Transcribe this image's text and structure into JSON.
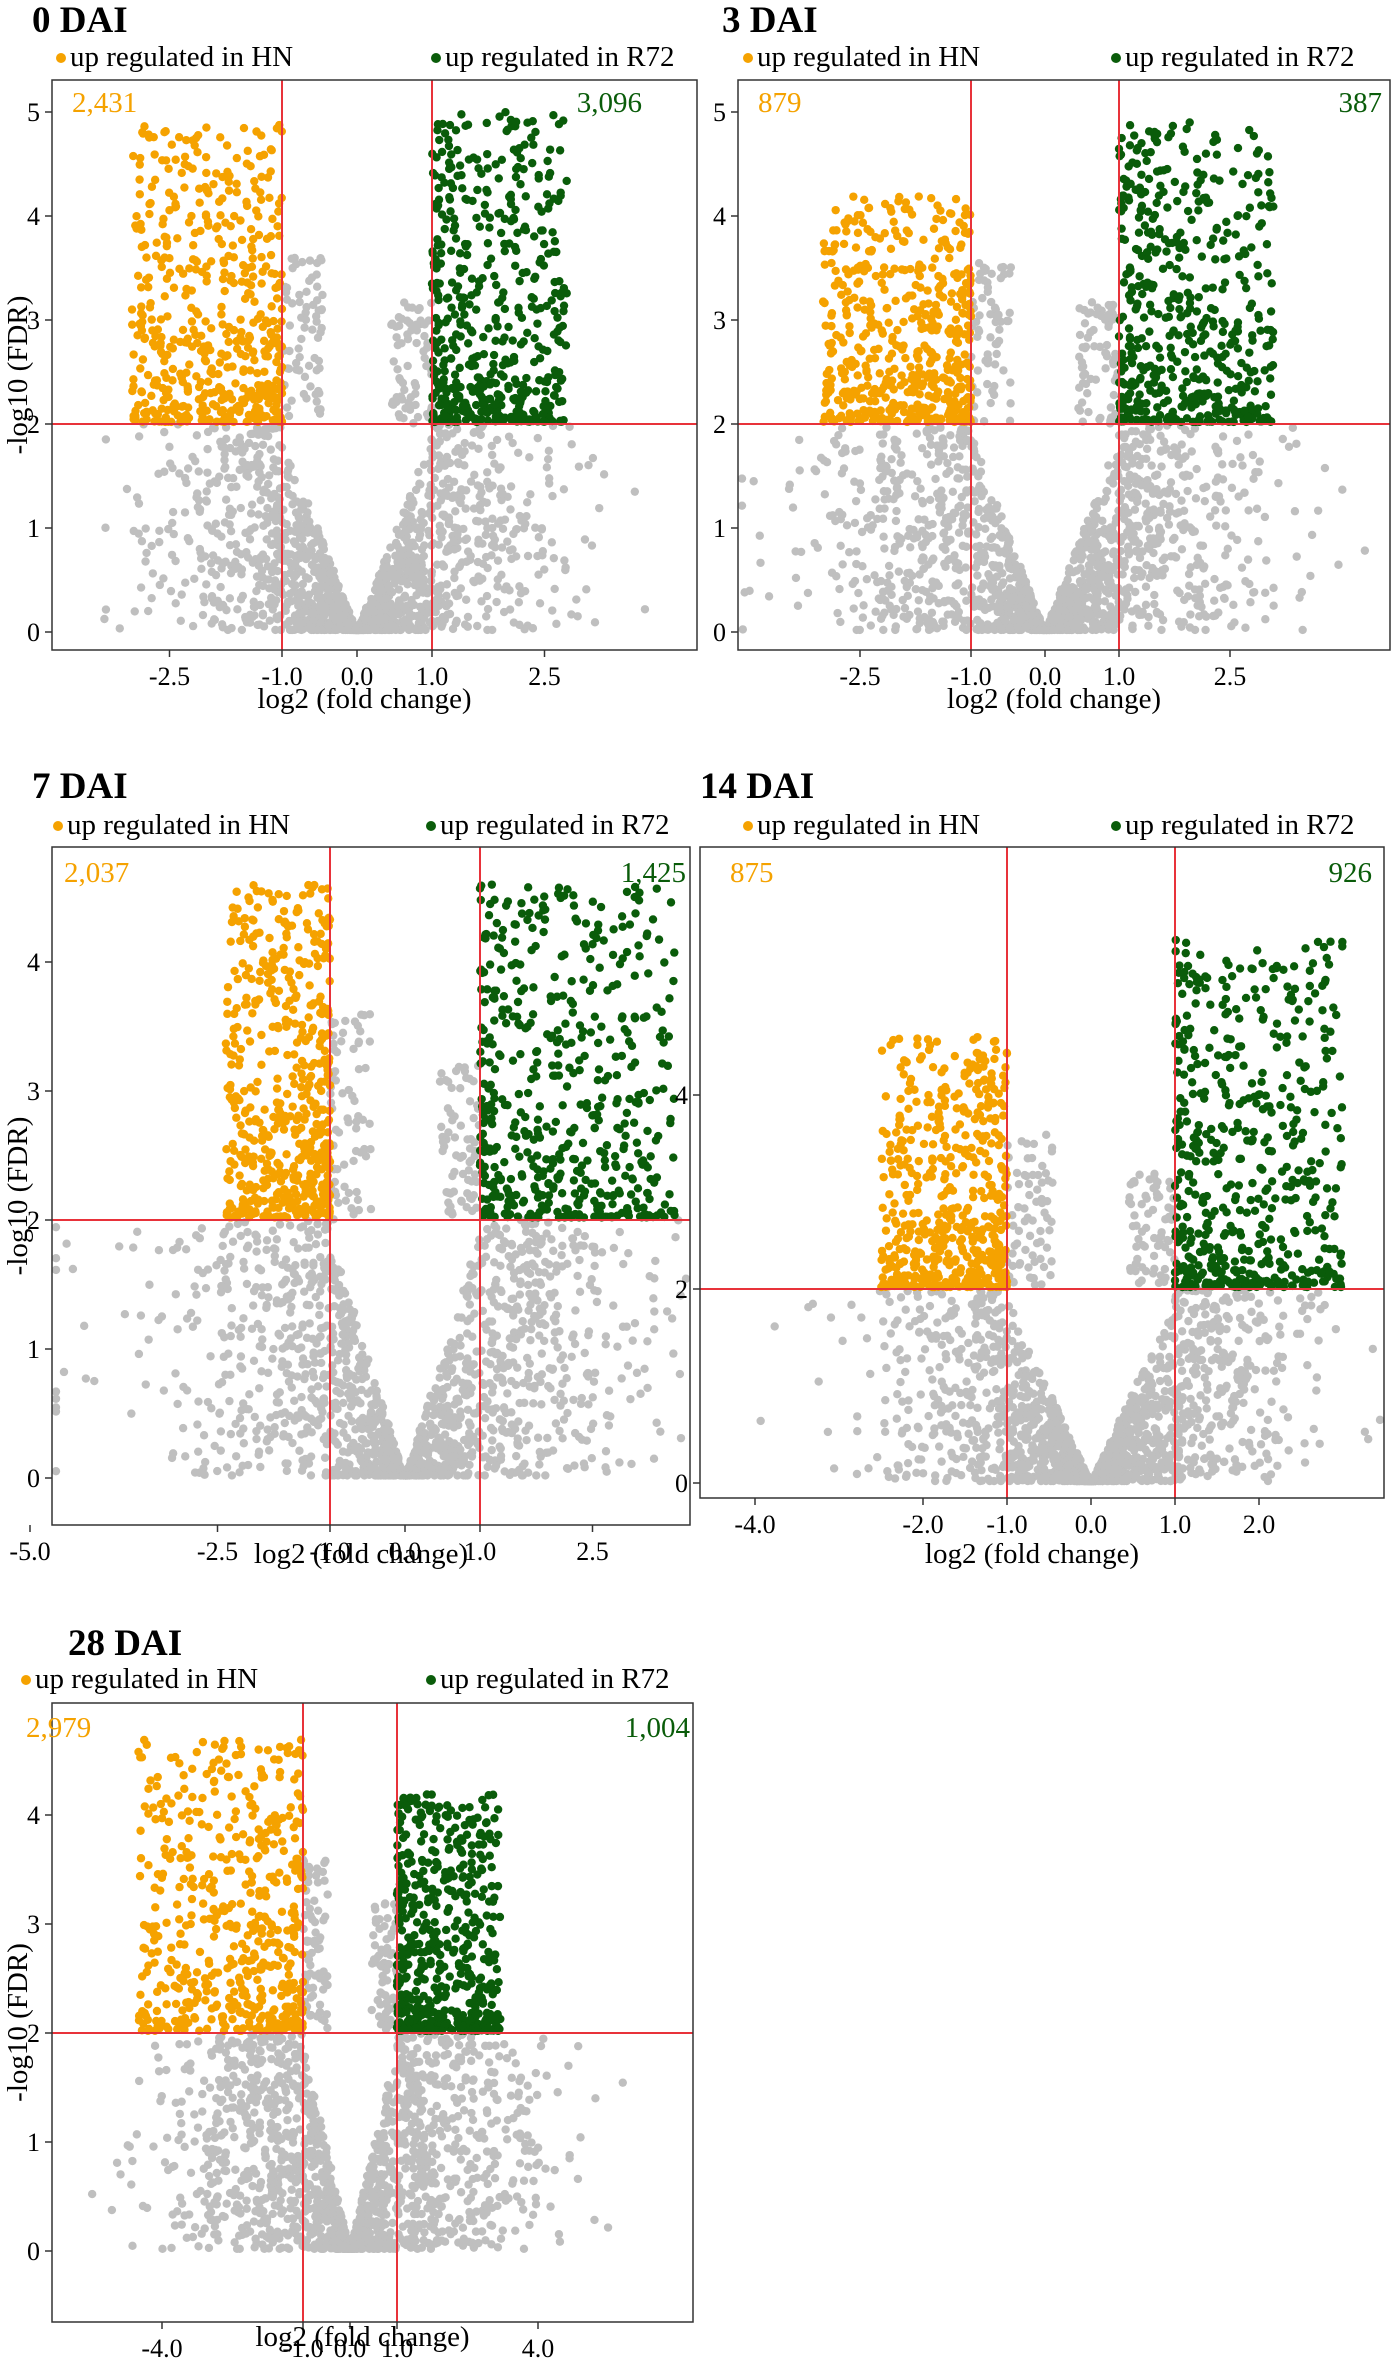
{
  "colors": {
    "hn": "#f5a200",
    "r72": "#0a5c0a",
    "ns": "#bfbfbf",
    "cutoff": "#e8323a",
    "frame": "#333333"
  },
  "chart_data": [
    {
      "type": "scatter",
      "title": "0 DAI",
      "legend": [
        "up regulated in HN",
        "up regulated in R72"
      ],
      "counts": {
        "hn": "2,431",
        "r72": "3,096"
      },
      "xlabel": "log2 (fold change)",
      "ylabel": "-log10 (FDR)",
      "xlim": [
        -4.0,
        4.2
      ],
      "ylim": [
        -0.1,
        5.35
      ],
      "xticks": [
        -2.5,
        -1.0,
        0.0,
        1.0,
        2.5
      ],
      "xtick_labels": [
        "-2.5",
        "-1.0",
        "0.0",
        "1.0",
        "2.5"
      ],
      "yticks": [
        0,
        1,
        2,
        3,
        4,
        5
      ],
      "thresholds": {
        "x": [
          -1.0,
          1.0
        ],
        "y": 2
      },
      "spread": {
        "hn_xmin": -3.0,
        "r72_xmax": 2.8,
        "hn_ymax": 4.9,
        "r72_ymax": 5.0,
        "ns_xmin": -3.9,
        "ns_xmax": 3.9
      },
      "grid": false
    },
    {
      "type": "scatter",
      "title": "3 DAI",
      "legend": [
        "up regulated in HN",
        "up regulated in R72"
      ],
      "counts": {
        "hn": "879",
        "r72": "387"
      },
      "xlabel": "log2 (fold change)",
      "ylabel": "",
      "xlim": [
        -4.8,
        4.8
      ],
      "ylim": [
        -0.1,
        5.35
      ],
      "xticks": [
        -2.5,
        -1.0,
        0.0,
        1.0,
        2.5
      ],
      "xtick_labels": [
        "-2.5",
        "-1.0",
        "0.0",
        "1.0",
        "2.5"
      ],
      "yticks": [
        0,
        1,
        2,
        3,
        4,
        5
      ],
      "thresholds": {
        "x": [
          -1.0,
          1.0
        ],
        "y": 2
      },
      "spread": {
        "hn_xmin": -3.0,
        "r72_xmax": 3.1,
        "hn_ymax": 4.2,
        "r72_ymax": 4.9,
        "ns_xmin": -4.4,
        "ns_xmax": 4.6
      },
      "grid": false
    },
    {
      "type": "scatter",
      "title": "7 DAI",
      "legend": [
        "up regulated in HN",
        "up regulated in R72"
      ],
      "counts": {
        "hn": "2,037",
        "r72": "1,425"
      },
      "xlabel": "log2 (fold change)",
      "ylabel": "-log10 (FDR)",
      "xlim": [
        -5.8,
        4.0
      ],
      "ylim": [
        -0.1,
        4.9
      ],
      "xticks": [
        -5.0,
        -2.5,
        -1.0,
        0.0,
        1.0,
        2.5
      ],
      "xtick_labels": [
        "-5.0",
        "-2.5",
        "-1.0",
        "0.0",
        "1.0",
        "2.5"
      ],
      "yticks": [
        0,
        1,
        2,
        3,
        4
      ],
      "thresholds": {
        "x": [
          -1.0,
          1.0
        ],
        "y": 2
      },
      "spread": {
        "hn_xmin": -2.4,
        "r72_xmax": 3.6,
        "hn_ymax": 4.6,
        "r72_ymax": 4.6,
        "ns_xmin": -5.5,
        "ns_xmax": 3.7
      },
      "grid": false
    },
    {
      "type": "scatter",
      "title": "14 DAI",
      "legend": [
        "up regulated in HN",
        "up regulated in R72"
      ],
      "counts": {
        "hn": "875",
        "r72": "926"
      },
      "xlabel": "log2 (fold change)",
      "ylabel": "",
      "xlim": [
        -4.2,
        3.6
      ],
      "ylim": [
        -0.1,
        6.0
      ],
      "xticks": [
        -4.0,
        -2.0,
        -1.0,
        0.0,
        1.0,
        2.0
      ],
      "xtick_labels": [
        "-4.0",
        "-2.0",
        "-1.0",
        "0.0",
        "1.0",
        "2.0"
      ],
      "yticks": [
        0,
        2,
        4
      ],
      "thresholds": {
        "x": [
          -1.0,
          1.0
        ],
        "y": 2
      },
      "spread": {
        "hn_xmin": -2.5,
        "r72_xmax": 3.0,
        "hn_ymax": 4.6,
        "r72_ymax": 5.6,
        "ns_xmin": -4.0,
        "ns_xmax": 3.5
      },
      "grid": false
    },
    {
      "type": "scatter",
      "title": "28 DAI",
      "legend": [
        "up regulated in HN",
        "up regulated in R72"
      ],
      "counts": {
        "hn": "2,979",
        "r72": "1,004"
      },
      "xlabel": "log2 (fold change)",
      "ylabel": "-log10 (FDR)",
      "xlim": [
        -6.5,
        7.5
      ],
      "ylim": [
        -0.1,
        4.95
      ],
      "xticks": [
        -4.0,
        -1.0,
        0.0,
        1.0,
        4.0
      ],
      "xtick_labels": [
        "-4.0",
        "-1.0",
        "0.0",
        "1.0",
        "4.0"
      ],
      "yticks": [
        0,
        1,
        2,
        3,
        4
      ],
      "thresholds": {
        "x": [
          -1.0,
          1.0
        ],
        "y": 2
      },
      "spread": {
        "hn_xmin": -4.5,
        "r72_xmax": 3.2,
        "hn_ymax": 4.7,
        "r72_ymax": 4.2,
        "ns_xmin": -5.6,
        "ns_xmax": 6.6
      },
      "grid": false
    }
  ]
}
